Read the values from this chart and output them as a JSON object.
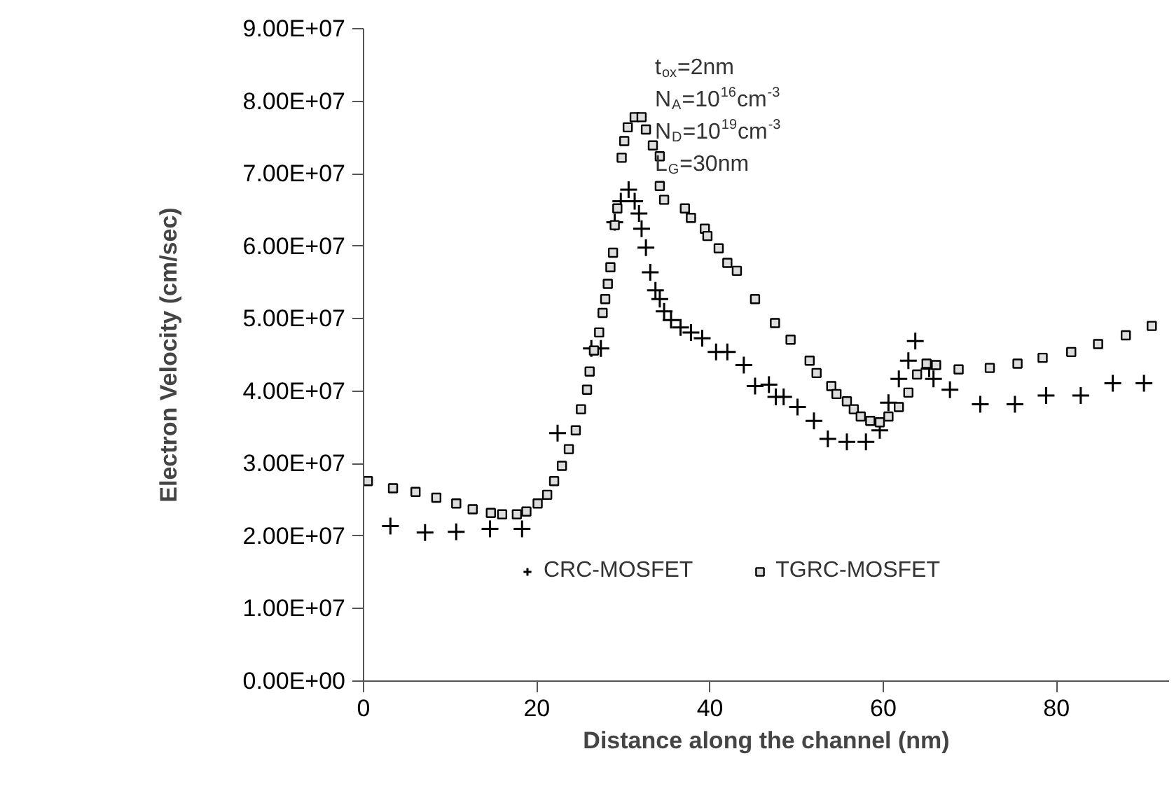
{
  "chart_data": {
    "type": "scatter",
    "xlabel": "Distance along the channel (nm)",
    "ylabel": "Electron Velocity (cm/sec)",
    "xlim": [
      0,
      93
    ],
    "xticks": [
      0,
      20,
      40,
      60,
      80
    ],
    "ylim": [
      0,
      90000000.0
    ],
    "yticks": [
      {
        "value": 0,
        "label": "0.00E+00"
      },
      {
        "value": 10000000.0,
        "label": "1.00E+07"
      },
      {
        "value": 20000000.0,
        "label": "2.00E+07"
      },
      {
        "value": 30000000.0,
        "label": "3.00E+07"
      },
      {
        "value": 40000000.0,
        "label": "4.00E+07"
      },
      {
        "value": 50000000.0,
        "label": "5.00E+07"
      },
      {
        "value": 60000000.0,
        "label": "6.00E+07"
      },
      {
        "value": 70000000.0,
        "label": "7.00E+07"
      },
      {
        "value": 80000000.0,
        "label": "8.00E+07"
      },
      {
        "value": 90000000.0,
        "label": "9.00E+07"
      }
    ],
    "grid": false,
    "legend": "bottom",
    "annotations": [
      "t$_{ox}$=2nm",
      "N$_{A}$=10$^{16}$cm$^{-3}$",
      "N$_{D}$=10$^{19}$cm$^{-3}$",
      "L$_{G}$=30nm"
    ],
    "series": [
      {
        "name": "CRC-MOSFET",
        "color": "#000000",
        "marker": "cross",
        "x": [
          3.1,
          7.1,
          10.7,
          14.6,
          18.3,
          22.4,
          26.3,
          27.4,
          29.0,
          29.7,
          30.6,
          31.3,
          31.8,
          32.1,
          32.6,
          33.1,
          33.7,
          34.2,
          34.7,
          35.5,
          36.6,
          37.8,
          39.1,
          40.7,
          42.0,
          43.9,
          45.2,
          46.8,
          47.6,
          48.5,
          50.1,
          52.0,
          53.6,
          55.8,
          58.0,
          59.6,
          60.6,
          61.8,
          62.9,
          63.7,
          65.3,
          65.8,
          67.7,
          71.2,
          75.2,
          78.8,
          82.8,
          86.5,
          90.1
        ],
        "values": [
          21400000.0,
          20500000.0,
          20600000.0,
          21000000.0,
          21000000.0,
          34200000.0,
          45900000.0,
          45900000.0,
          63300000.0,
          66200000.0,
          67800000.0,
          66200000.0,
          64500000.0,
          62400000.0,
          59800000.0,
          56400000.0,
          53900000.0,
          52700000.0,
          51000000.0,
          49800000.0,
          48800000.0,
          48100000.0,
          47300000.0,
          45400000.0,
          45400000.0,
          43600000.0,
          40700000.0,
          40900000.0,
          39200000.0,
          39200000.0,
          37800000.0,
          35900000.0,
          33400000.0,
          33000000.0,
          33000000.0,
          34600000.0,
          38400000.0,
          41700000.0,
          44200000.0,
          46900000.0,
          43100000.0,
          41700000.0,
          40200000.0,
          38200000.0,
          38200000.0,
          39400000.0,
          39400000.0,
          41100000.0,
          41100000.0
        ]
      },
      {
        "name": "TGRC-MOSFET",
        "color": "#000000",
        "marker": "square",
        "x": [
          0.5,
          3.4,
          6.0,
          8.4,
          10.7,
          12.6,
          14.7,
          16.0,
          17.7,
          18.8,
          20.1,
          21.2,
          22.0,
          22.9,
          23.7,
          24.5,
          25.1,
          25.8,
          26.1,
          26.6,
          27.2,
          27.6,
          27.9,
          28.2,
          28.5,
          28.8,
          29.0,
          29.3,
          29.8,
          30.1,
          30.5,
          31.3,
          32.1,
          32.6,
          33.4,
          34.2,
          34.2,
          34.7,
          37.1,
          37.8,
          39.4,
          39.7,
          41.0,
          42.0,
          43.1,
          45.2,
          47.5,
          49.3,
          51.5,
          52.3,
          54.0,
          54.6,
          55.8,
          56.6,
          57.4,
          58.5,
          59.6,
          60.6,
          61.8,
          62.9,
          63.9,
          65.0,
          66.1,
          68.7,
          72.3,
          75.5,
          78.4,
          81.7,
          84.8,
          88.0,
          91.0
        ],
        "values": [
          27600000.0,
          26600000.0,
          26100000.0,
          25300000.0,
          24500000.0,
          23700000.0,
          23200000.0,
          23000000.0,
          23000000.0,
          23400000.0,
          24500000.0,
          25700000.0,
          27600000.0,
          29700000.0,
          32000000.0,
          34600000.0,
          37500000.0,
          40200000.0,
          42700000.0,
          45600000.0,
          48100000.0,
          50800000.0,
          52700000.0,
          54800000.0,
          57100000.0,
          59100000.0,
          62900000.0,
          65200000.0,
          72200000.0,
          74500000.0,
          76400000.0,
          77800000.0,
          77800000.0,
          76100000.0,
          73900000.0,
          72400000.0,
          68300000.0,
          66400000.0,
          65200000.0,
          63900000.0,
          62400000.0,
          61400000.0,
          59700000.0,
          57700000.0,
          56600000.0,
          52700000.0,
          49400000.0,
          47100000.0,
          44200000.0,
          42500000.0,
          40700000.0,
          39600000.0,
          38600000.0,
          37500000.0,
          36500000.0,
          35900000.0,
          35700000.0,
          36500000.0,
          37800000.0,
          39800000.0,
          42300000.0,
          43800000.0,
          43600000.0,
          43000000.0,
          43200000.0,
          43800000.0,
          44600000.0,
          45400000.0,
          46500000.0,
          47700000.0,
          49000000.0
        ]
      }
    ]
  }
}
